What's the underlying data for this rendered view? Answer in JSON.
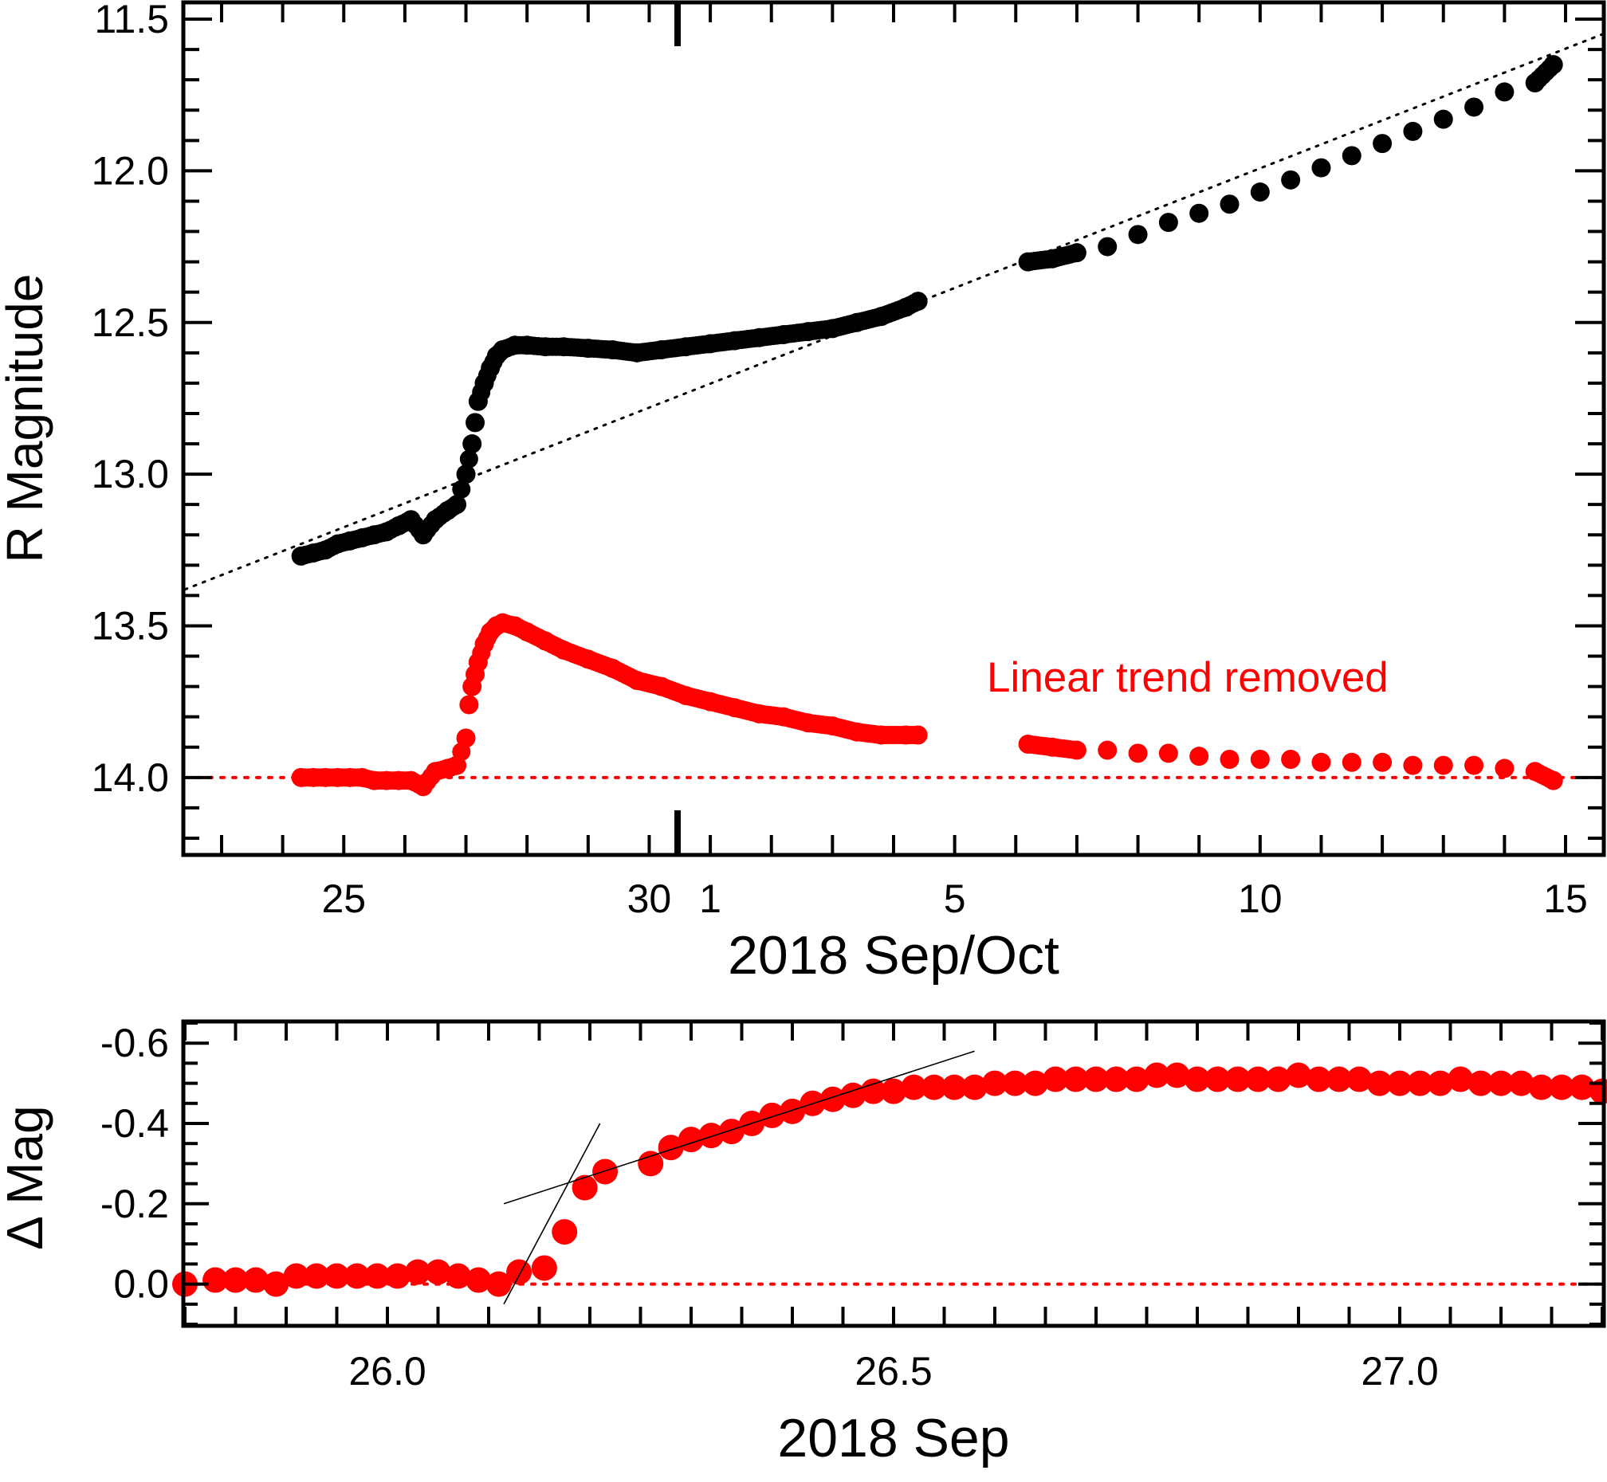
{
  "colors": {
    "upper_series": "#000000",
    "lower_series": "#ff0000",
    "axes": "#000000"
  },
  "chart_data": [
    {
      "type": "scatter",
      "title": "",
      "xlabel": "2018 Sep/Oct",
      "ylabel": "R Magnitude",
      "y_inverted": true,
      "xlim": [
        -2.6,
        20.6
      ],
      "ylim": [
        14.25,
        11.45
      ],
      "x_unit": "day from 2018 Sep 25",
      "x_tick_values": [
        0,
        5,
        6,
        10,
        15,
        20
      ],
      "x_tick_labels": [
        "25",
        "30",
        "1",
        "5",
        "10",
        "15"
      ],
      "y_tick_values": [
        11.5,
        12.0,
        12.5,
        13.0,
        13.5,
        14.0
      ],
      "y_tick_labels": [
        "11.5",
        "12.0",
        "12.5",
        "13.0",
        "13.5",
        "14.0"
      ],
      "annotation": "Linear trend removed",
      "trend_line": {
        "x": [
          -2.6,
          20.6
        ],
        "y": [
          13.38,
          11.55
        ]
      },
      "reference_line_y": 14.0,
      "series": [
        {
          "x": [
            -0.7,
            -0.5,
            -0.3,
            -0.1,
            0.1,
            0.3,
            0.5,
            0.7,
            0.9,
            1.1,
            1.3,
            1.5,
            1.7,
            1.85,
            2.0,
            2.1,
            2.15,
            2.2,
            2.3,
            2.4,
            2.5,
            2.6,
            2.8,
            3.0,
            3.3,
            3.6,
            4.0,
            4.4,
            4.8,
            5.2,
            5.6,
            6.0,
            6.4,
            6.8,
            7.2,
            7.6,
            8.0,
            8.4,
            8.8,
            9.2,
            9.4,
            11.2,
            11.6,
            12.0,
            12.5,
            13.0,
            13.5,
            14.0,
            14.5,
            15.0,
            15.5,
            16.0,
            16.5,
            17.0,
            17.5,
            18.0,
            18.5,
            19.0,
            19.5,
            19.8
          ],
          "y": [
            13.27,
            13.26,
            13.25,
            13.23,
            13.22,
            13.21,
            13.2,
            13.19,
            13.17,
            13.15,
            13.2,
            13.15,
            13.12,
            13.1,
            13.0,
            12.9,
            12.83,
            12.76,
            12.7,
            12.65,
            12.61,
            12.59,
            12.575,
            12.575,
            12.58,
            12.58,
            12.585,
            12.59,
            12.6,
            12.59,
            12.58,
            12.57,
            12.56,
            12.55,
            12.54,
            12.53,
            12.52,
            12.5,
            12.48,
            12.45,
            12.43,
            12.3,
            12.29,
            12.27,
            12.25,
            12.21,
            12.17,
            12.14,
            12.11,
            12.07,
            12.03,
            11.99,
            11.95,
            11.91,
            11.87,
            11.83,
            11.79,
            11.74,
            11.71,
            11.65
          ]
        },
        {
          "x": [
            -0.7,
            -0.5,
            -0.3,
            -0.1,
            0.1,
            0.3,
            0.5,
            0.7,
            0.9,
            1.1,
            1.3,
            1.5,
            1.7,
            1.85,
            2.0,
            2.05,
            2.1,
            2.15,
            2.2,
            2.3,
            2.4,
            2.5,
            2.6,
            2.8,
            3.0,
            3.3,
            3.6,
            4.0,
            4.4,
            4.8,
            5.2,
            5.6,
            6.0,
            6.4,
            6.8,
            7.2,
            7.6,
            8.0,
            8.4,
            8.8,
            9.2,
            9.4,
            11.2,
            11.6,
            12.0,
            12.5,
            13.0,
            13.5,
            14.0,
            14.5,
            15.0,
            15.5,
            16.0,
            16.5,
            17.0,
            17.5,
            18.0,
            18.5,
            19.0,
            19.5,
            19.8
          ],
          "y": [
            14.0,
            14.0,
            14.0,
            14.0,
            14.0,
            14.0,
            14.01,
            14.01,
            14.01,
            14.01,
            14.03,
            13.98,
            13.97,
            13.96,
            13.87,
            13.76,
            13.7,
            13.66,
            13.62,
            13.56,
            13.52,
            13.5,
            13.49,
            13.5,
            13.52,
            13.55,
            13.58,
            13.61,
            13.64,
            13.68,
            13.7,
            13.73,
            13.75,
            13.77,
            13.79,
            13.8,
            13.82,
            13.83,
            13.85,
            13.86,
            13.86,
            13.86,
            13.89,
            13.9,
            13.91,
            13.91,
            13.92,
            13.92,
            13.93,
            13.94,
            13.94,
            13.94,
            13.95,
            13.95,
            13.95,
            13.96,
            13.96,
            13.96,
            13.97,
            13.98,
            14.01
          ]
        }
      ]
    },
    {
      "type": "scatter",
      "title": "",
      "xlabel": "2018 Sep",
      "ylabel": "Δ Mag",
      "y_inverted": true,
      "xlim": [
        25.8,
        27.2
      ],
      "ylim": [
        0.1,
        -0.65
      ],
      "x_tick_values": [
        26.0,
        26.5,
        27.0
      ],
      "x_tick_labels": [
        "26.0",
        "26.5",
        "27.0"
      ],
      "y_tick_values": [
        -0.6,
        -0.4,
        -0.2,
        0.0
      ],
      "y_tick_labels": [
        "-0.6",
        "-0.4",
        "-0.2",
        "0.0"
      ],
      "reference_line_y": 0.0,
      "fit_lines": [
        {
          "x": [
            26.115,
            26.21
          ],
          "y": [
            0.05,
            -0.4
          ]
        },
        {
          "x": [
            26.115,
            26.58
          ],
          "y": [
            -0.2,
            -0.58
          ]
        }
      ],
      "series": [
        {
          "x": [
            25.8,
            25.83,
            25.85,
            25.87,
            25.89,
            25.91,
            25.93,
            25.95,
            25.97,
            25.99,
            26.01,
            26.03,
            26.05,
            26.07,
            26.09,
            26.11,
            26.13,
            26.155,
            26.175,
            26.195,
            26.215,
            26.26,
            26.28,
            26.3,
            26.32,
            26.34,
            26.36,
            26.38,
            26.4,
            26.42,
            26.44,
            26.46,
            26.48,
            26.5,
            26.52,
            26.54,
            26.56,
            26.58,
            26.6,
            26.62,
            26.64,
            26.66,
            26.68,
            26.7,
            26.72,
            26.74,
            26.76,
            26.78,
            26.8,
            26.82,
            26.84,
            26.86,
            26.88,
            26.9,
            26.92,
            26.94,
            26.96,
            26.98,
            27.0,
            27.02,
            27.04,
            27.06,
            27.08,
            27.1,
            27.12,
            27.14,
            27.16,
            27.18,
            27.2
          ],
          "y": [
            0.0,
            -0.01,
            -0.01,
            -0.01,
            0.0,
            -0.02,
            -0.02,
            -0.02,
            -0.02,
            -0.02,
            -0.02,
            -0.03,
            -0.03,
            -0.02,
            -0.01,
            0.0,
            -0.03,
            -0.04,
            -0.13,
            -0.24,
            -0.28,
            -0.3,
            -0.34,
            -0.36,
            -0.37,
            -0.38,
            -0.4,
            -0.42,
            -0.43,
            -0.45,
            -0.46,
            -0.47,
            -0.48,
            -0.48,
            -0.49,
            -0.49,
            -0.49,
            -0.49,
            -0.5,
            -0.5,
            -0.5,
            -0.51,
            -0.51,
            -0.51,
            -0.51,
            -0.51,
            -0.52,
            -0.52,
            -0.51,
            -0.51,
            -0.51,
            -0.51,
            -0.51,
            -0.52,
            -0.51,
            -0.51,
            -0.51,
            -0.5,
            -0.5,
            -0.5,
            -0.5,
            -0.51,
            -0.5,
            -0.5,
            -0.5,
            -0.49,
            -0.49,
            -0.49,
            -0.48
          ]
        }
      ]
    }
  ]
}
